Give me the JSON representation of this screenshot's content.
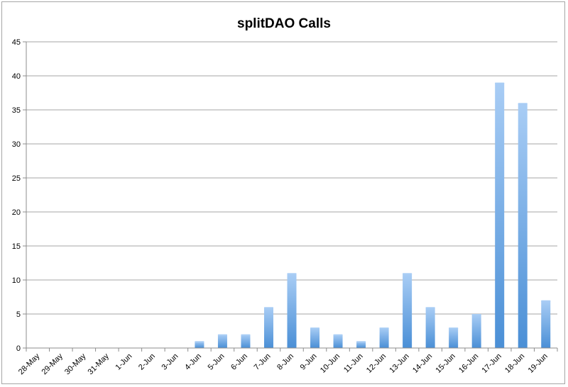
{
  "chart_data": {
    "type": "bar",
    "title": "splitDAO Calls",
    "xlabel": "",
    "ylabel": "",
    "categories": [
      "28-May",
      "29-May",
      "30-May",
      "31-May",
      "1-Jun",
      "2-Jun",
      "3-Jun",
      "4-Jun",
      "5-Jun",
      "6-Jun",
      "7-Jun",
      "8-Jun",
      "9-Jun",
      "10-Jun",
      "11-Jun",
      "12-Jun",
      "13-Jun",
      "14-Jun",
      "15-Jun",
      "16-Jun",
      "17-Jun",
      "18-Jun",
      "19-Jun"
    ],
    "values": [
      0,
      0,
      0,
      0,
      0,
      0,
      0,
      1,
      2,
      2,
      6,
      11,
      3,
      2,
      1,
      3,
      11,
      6,
      3,
      5,
      39,
      36,
      7
    ],
    "ylim": [
      0,
      45
    ],
    "yticks": [
      0,
      5,
      10,
      15,
      20,
      25,
      30,
      35,
      40,
      45
    ],
    "grid": true,
    "legend": "none",
    "colors": {
      "bar_top": "#a9cdf5",
      "bar_bottom": "#4a8fd6",
      "grid": "#a6a6a6",
      "axis": "#8c8c8c"
    }
  }
}
